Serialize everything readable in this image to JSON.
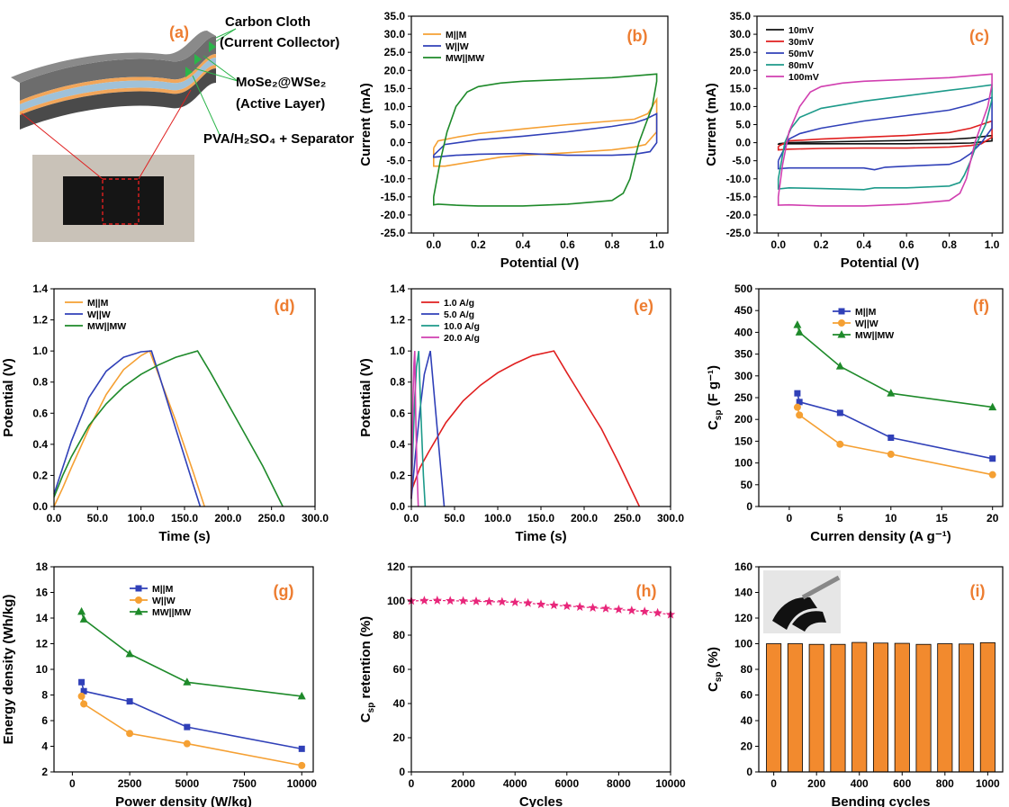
{
  "colors": {
    "orange": "#f5a033",
    "blue": "#3040b8",
    "green": "#1e8a2a",
    "red": "#e01f1f",
    "teal": "#1d9a8a",
    "magenta": "#d13fb0",
    "black": "#111111",
    "pink": "#e8267a",
    "bar": "#f28a2e",
    "label": "#ed7d31"
  },
  "schematic": {
    "label": "(a)",
    "annotations": [
      "Carbon Cloth",
      "(Current Collector)",
      "MoSe₂@WSe₂",
      "(Active Layer)",
      "PVA/H₂SO₄ + Separator"
    ]
  },
  "chart_data": [
    {
      "id": "b",
      "label": "(b)",
      "type": "line",
      "xlabel": "Potential (V)",
      "ylabel": "Current (mA)",
      "xlim": [
        -0.1,
        1.05
      ],
      "ylim": [
        -25,
        35
      ],
      "xticks": [
        0.0,
        0.2,
        0.4,
        0.6,
        0.8,
        1.0
      ],
      "yticks": [
        -25,
        -20,
        -15,
        -10,
        -5,
        0,
        5,
        10,
        15,
        20,
        25,
        30,
        35
      ],
      "tick_decimals": 1,
      "legend": "top-left",
      "series": [
        {
          "name": "M||M",
          "color": "#f5a033",
          "x": [
            0.0,
            0.02,
            0.1,
            0.2,
            0.4,
            0.6,
            0.8,
            0.9,
            0.96,
            1.0,
            1.0,
            0.95,
            0.9,
            0.8,
            0.6,
            0.4,
            0.3,
            0.2,
            0.1,
            0.05,
            0.0,
            0.0
          ],
          "y": [
            -1.5,
            0.5,
            1.5,
            2.5,
            3.8,
            5.0,
            6.0,
            6.5,
            8.0,
            12.0,
            3.0,
            -0.5,
            -1.2,
            -2.0,
            -2.8,
            -3.5,
            -4.0,
            -5.0,
            -6.0,
            -6.5,
            -6.5,
            -1.5
          ]
        },
        {
          "name": "W||W",
          "color": "#3040b8",
          "x": [
            0.0,
            0.05,
            0.2,
            0.4,
            0.6,
            0.8,
            0.9,
            0.95,
            1.0,
            1.0,
            0.97,
            0.9,
            0.8,
            0.6,
            0.4,
            0.2,
            0.1,
            0.0,
            0.0
          ],
          "y": [
            -3.5,
            -0.5,
            0.8,
            1.8,
            3.0,
            4.5,
            5.5,
            6.5,
            8.0,
            0.0,
            -2.5,
            -3.2,
            -3.5,
            -3.5,
            -3.0,
            -3.2,
            -3.5,
            -4.0,
            -3.5
          ]
        },
        {
          "name": "MW||MW",
          "color": "#1e8a2a",
          "x": [
            0.0,
            0.03,
            0.06,
            0.1,
            0.15,
            0.2,
            0.3,
            0.4,
            0.6,
            0.8,
            0.9,
            1.0,
            1.0,
            0.98,
            0.95,
            0.92,
            0.9,
            0.88,
            0.85,
            0.8,
            0.6,
            0.4,
            0.2,
            0.1,
            0.02,
            0.0,
            0.0
          ],
          "y": [
            -15.0,
            -5.0,
            3.0,
            10.0,
            14.0,
            15.5,
            16.5,
            17.0,
            17.5,
            18.0,
            18.5,
            19.0,
            17.0,
            10.0,
            5.0,
            0.0,
            -5.0,
            -10.0,
            -14.0,
            -16.0,
            -17.0,
            -17.5,
            -17.5,
            -17.3,
            -17.0,
            -17.2,
            -15.0
          ]
        }
      ]
    },
    {
      "id": "c",
      "label": "(c)",
      "type": "line",
      "xlabel": "Potential (V)",
      "ylabel": "Current (mA)",
      "xlim": [
        -0.1,
        1.05
      ],
      "ylim": [
        -25,
        35
      ],
      "xticks": [
        0.0,
        0.2,
        0.4,
        0.6,
        0.8,
        1.0
      ],
      "yticks": [
        -25,
        -20,
        -15,
        -10,
        -5,
        0,
        5,
        10,
        15,
        20,
        25,
        30,
        35
      ],
      "tick_decimals": 1,
      "legend": "top-left",
      "series": [
        {
          "name": "10mV",
          "color": "#111111",
          "x": [
            0.0,
            0.05,
            0.2,
            0.4,
            0.6,
            0.8,
            0.9,
            1.0,
            1.0,
            0.9,
            0.8,
            0.6,
            0.4,
            0.2,
            0.05,
            0.0,
            0.0
          ],
          "y": [
            -0.3,
            0.0,
            0.2,
            0.4,
            0.6,
            0.9,
            1.3,
            2.0,
            0.5,
            -0.1,
            -0.2,
            -0.3,
            -0.3,
            -0.3,
            -0.3,
            -0.4,
            -0.3
          ]
        },
        {
          "name": "30mV",
          "color": "#e01f1f",
          "x": [
            0.0,
            0.05,
            0.2,
            0.4,
            0.6,
            0.8,
            0.9,
            1.0,
            1.0,
            0.95,
            0.9,
            0.8,
            0.6,
            0.4,
            0.2,
            0.05,
            0.0,
            0.0
          ],
          "y": [
            -1.0,
            0.5,
            1.0,
            1.5,
            2.0,
            2.8,
            4.0,
            6.0,
            1.5,
            -0.3,
            -0.8,
            -1.2,
            -1.5,
            -1.5,
            -1.6,
            -1.8,
            -2.0,
            -1.0
          ]
        },
        {
          "name": "50mV",
          "color": "#3040b8",
          "x": [
            0.0,
            0.05,
            0.1,
            0.2,
            0.4,
            0.6,
            0.8,
            0.9,
            1.0,
            1.0,
            0.95,
            0.9,
            0.85,
            0.8,
            0.6,
            0.5,
            0.45,
            0.4,
            0.2,
            0.05,
            0.0,
            0.0
          ],
          "y": [
            -5.0,
            1.0,
            2.5,
            4.0,
            6.0,
            7.5,
            9.0,
            10.5,
            12.5,
            4.0,
            0.0,
            -3.0,
            -5.0,
            -6.0,
            -6.5,
            -6.8,
            -7.5,
            -7.0,
            -7.0,
            -7.0,
            -7.2,
            -5.0
          ]
        },
        {
          "name": "80mV",
          "color": "#1d9a8a",
          "x": [
            0.0,
            0.03,
            0.06,
            0.1,
            0.2,
            0.4,
            0.6,
            0.8,
            0.9,
            1.0,
            1.0,
            0.97,
            0.93,
            0.9,
            0.87,
            0.85,
            0.8,
            0.6,
            0.45,
            0.4,
            0.2,
            0.05,
            0.0,
            0.0
          ],
          "y": [
            -10.0,
            0.0,
            4.0,
            7.0,
            9.5,
            11.5,
            13.0,
            14.5,
            15.2,
            16.0,
            12.0,
            5.0,
            0.0,
            -5.0,
            -9.0,
            -11.0,
            -12.0,
            -12.5,
            -12.5,
            -13.0,
            -12.7,
            -12.5,
            -12.8,
            -10.0
          ]
        },
        {
          "name": "100mV",
          "color": "#d13fb0",
          "x": [
            0.0,
            0.02,
            0.05,
            0.1,
            0.15,
            0.2,
            0.3,
            0.4,
            0.6,
            0.8,
            0.9,
            1.0,
            1.0,
            0.98,
            0.95,
            0.92,
            0.9,
            0.88,
            0.85,
            0.8,
            0.6,
            0.4,
            0.2,
            0.05,
            0.0,
            0.0
          ],
          "y": [
            -15.0,
            -6.0,
            3.0,
            10.0,
            14.0,
            15.5,
            16.5,
            17.0,
            17.5,
            18.0,
            18.5,
            19.0,
            16.0,
            10.0,
            5.0,
            0.0,
            -5.0,
            -10.0,
            -14.0,
            -16.0,
            -17.0,
            -17.5,
            -17.5,
            -17.2,
            -17.3,
            -15.0
          ]
        }
      ]
    },
    {
      "id": "d",
      "label": "(d)",
      "type": "line",
      "xlabel": "Time (s)",
      "ylabel": "Potential (V)",
      "xlim": [
        0,
        300
      ],
      "ylim": [
        0.0,
        1.4
      ],
      "xticks": [
        0,
        50,
        100,
        150,
        200,
        250,
        300
      ],
      "yticks": [
        0.0,
        0.2,
        0.4,
        0.6,
        0.8,
        1.0,
        1.2,
        1.4
      ],
      "tick_decimals": 1,
      "legend": "top-left",
      "series": [
        {
          "name": "M||M",
          "color": "#f5a033",
          "x": [
            0,
            10,
            20,
            40,
            60,
            80,
            100,
            110,
            120,
            140,
            160,
            173
          ],
          "y": [
            0.0,
            0.12,
            0.25,
            0.5,
            0.72,
            0.88,
            0.97,
            1.0,
            0.85,
            0.55,
            0.22,
            0.0
          ]
        },
        {
          "name": "W||W",
          "color": "#3040b8",
          "x": [
            0,
            10,
            20,
            40,
            60,
            80,
            100,
            112,
            120,
            140,
            160,
            168
          ],
          "y": [
            0.08,
            0.25,
            0.42,
            0.7,
            0.87,
            0.96,
            0.995,
            1.0,
            0.86,
            0.5,
            0.14,
            0.0
          ]
        },
        {
          "name": "MW||MW",
          "color": "#1e8a2a",
          "x": [
            0,
            10,
            20,
            40,
            60,
            80,
            100,
            120,
            140,
            165,
            180,
            200,
            220,
            240,
            263
          ],
          "y": [
            0.06,
            0.2,
            0.32,
            0.52,
            0.66,
            0.77,
            0.85,
            0.91,
            0.96,
            1.0,
            0.86,
            0.66,
            0.46,
            0.26,
            0.0
          ]
        }
      ]
    },
    {
      "id": "e",
      "label": "(e)",
      "type": "line",
      "xlabel": "Time (s)",
      "ylabel": "Potential (V)",
      "xlim": [
        0,
        300
      ],
      "ylim": [
        0.0,
        1.4
      ],
      "xticks": [
        0,
        50,
        100,
        150,
        200,
        250,
        300
      ],
      "yticks": [
        0.0,
        0.2,
        0.4,
        0.6,
        0.8,
        1.0,
        1.2,
        1.4
      ],
      "tick_decimals": 1,
      "legend": "top-left",
      "series": [
        {
          "name": "1.0 A/g",
          "color": "#e01f1f",
          "x": [
            0,
            10,
            20,
            40,
            60,
            80,
            100,
            120,
            140,
            165,
            180,
            200,
            220,
            240,
            264
          ],
          "y": [
            0.1,
            0.25,
            0.35,
            0.54,
            0.68,
            0.78,
            0.86,
            0.92,
            0.97,
            1.0,
            0.86,
            0.68,
            0.5,
            0.28,
            0.0
          ]
        },
        {
          "name": "5.0 A/g",
          "color": "#3040b8",
          "x": [
            0,
            5,
            10,
            15,
            22,
            28,
            34,
            38
          ],
          "y": [
            0.05,
            0.35,
            0.62,
            0.85,
            1.0,
            0.62,
            0.25,
            0.0
          ]
        },
        {
          "name": "10.0 A/g",
          "color": "#1d9a8a",
          "x": [
            0,
            2,
            4,
            6,
            8.5,
            11,
            14,
            16
          ],
          "y": [
            0.05,
            0.4,
            0.7,
            0.9,
            1.0,
            0.6,
            0.2,
            0.0
          ]
        },
        {
          "name": "20.0 A/g",
          "color": "#d13fb0",
          "x": [
            0,
            1,
            2,
            3,
            4,
            5,
            6.5,
            8
          ],
          "y": [
            0.05,
            0.4,
            0.72,
            0.92,
            1.0,
            0.6,
            0.25,
            0.0
          ]
        }
      ]
    },
    {
      "id": "f",
      "label": "(f)",
      "type": "line",
      "xlabel": "Curren density (A g⁻¹)",
      "ylabel": "Csp (F g⁻¹)",
      "xlim": [
        -3,
        21
      ],
      "ylim": [
        0,
        500
      ],
      "xticks": [
        0,
        5,
        10,
        15,
        20
      ],
      "yticks": [
        0,
        50,
        100,
        150,
        200,
        250,
        300,
        350,
        400,
        450,
        500
      ],
      "tick_decimals": 0,
      "legend": "top-center",
      "series": [
        {
          "name": "M||M",
          "color": "#3040b8",
          "marker": "square",
          "x": [
            0.8,
            1,
            5,
            10,
            20
          ],
          "y": [
            260,
            240,
            215,
            158,
            110
          ]
        },
        {
          "name": "W||W",
          "color": "#f5a033",
          "marker": "circle",
          "x": [
            0.8,
            1,
            5,
            10,
            20
          ],
          "y": [
            228,
            210,
            143,
            120,
            73
          ]
        },
        {
          "name": "MW||MW",
          "color": "#1e8a2a",
          "marker": "triangle",
          "x": [
            0.8,
            1,
            5,
            10,
            20
          ],
          "y": [
            417,
            400,
            322,
            260,
            228
          ]
        }
      ]
    },
    {
      "id": "g",
      "label": "(g)",
      "type": "line",
      "xlabel": "Power density (W/kg)",
      "ylabel": "Energy density (Wh/kg)",
      "xlim": [
        -800,
        10500
      ],
      "ylim": [
        2,
        18
      ],
      "xticks": [
        0,
        2500,
        5000,
        7500,
        10000
      ],
      "yticks": [
        2,
        4,
        6,
        8,
        10,
        12,
        14,
        16,
        18
      ],
      "tick_decimals": 0,
      "legend": "top-center",
      "series": [
        {
          "name": "M||M",
          "color": "#3040b8",
          "marker": "square",
          "x": [
            400,
            500,
            2500,
            5000,
            10000
          ],
          "y": [
            9.0,
            8.3,
            7.5,
            5.5,
            3.8
          ]
        },
        {
          "name": "W||W",
          "color": "#f5a033",
          "marker": "circle",
          "x": [
            400,
            500,
            2500,
            5000,
            10000
          ],
          "y": [
            7.9,
            7.3,
            5.0,
            4.2,
            2.5
          ]
        },
        {
          "name": "MW||MW",
          "color": "#1e8a2a",
          "marker": "triangle",
          "x": [
            400,
            500,
            2500,
            5000,
            10000
          ],
          "y": [
            14.5,
            13.9,
            11.2,
            9.0,
            7.9
          ]
        }
      ]
    },
    {
      "id": "h",
      "label": "(h)",
      "type": "line",
      "xlabel": "Cycles",
      "ylabel": "Csp retention (%)",
      "xlim": [
        0,
        10000
      ],
      "ylim": [
        0,
        120
      ],
      "xticks": [
        0,
        2000,
        4000,
        6000,
        8000,
        10000
      ],
      "yticks": [
        0,
        20,
        40,
        60,
        80,
        100,
        120
      ],
      "tick_decimals": 0,
      "series": [
        {
          "name": "",
          "color": "#e8267a",
          "marker": "star",
          "x": [
            0,
            500,
            1000,
            1500,
            2000,
            2500,
            3000,
            3500,
            4000,
            4500,
            5000,
            5500,
            6000,
            6500,
            7000,
            7500,
            8000,
            8500,
            9000,
            9500,
            10000
          ],
          "y": [
            100,
            100.2,
            100.3,
            100.1,
            100.0,
            99.8,
            99.6,
            99.5,
            99.2,
            98.8,
            98.0,
            97.5,
            97.0,
            96.5,
            96.0,
            95.6,
            95.0,
            94.4,
            93.8,
            93.0,
            92.0
          ]
        }
      ]
    },
    {
      "id": "i",
      "label": "(i)",
      "type": "bar",
      "xlabel": "Bending cycles",
      "ylabel": "Csp (%)",
      "xlim": [
        -70,
        1070
      ],
      "ylim": [
        0,
        160
      ],
      "xticks": [
        0,
        200,
        400,
        600,
        800,
        1000
      ],
      "yticks": [
        0,
        20,
        40,
        60,
        80,
        100,
        120,
        140,
        160
      ],
      "tick_decimals": 0,
      "x": [
        0,
        100,
        200,
        300,
        400,
        500,
        600,
        700,
        800,
        900,
        1000
      ],
      "values": [
        100,
        100,
        99.5,
        99.5,
        101,
        100.5,
        100.3,
        99.5,
        100,
        99.8,
        100.8
      ]
    }
  ]
}
